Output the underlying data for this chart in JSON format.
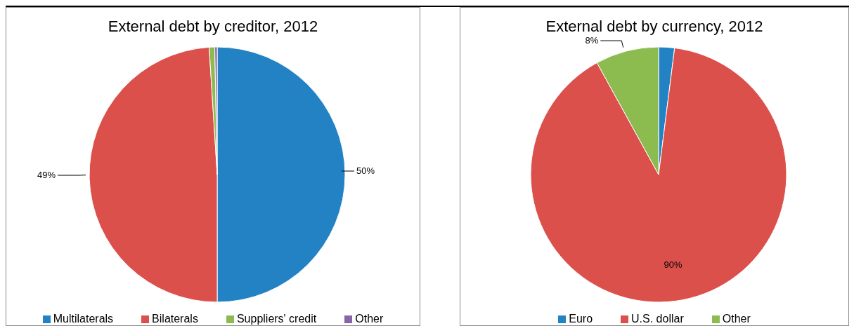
{
  "chart_data": [
    {
      "type": "pie",
      "title": "External debt by creditor, 2012",
      "categories": [
        "Multilaterals",
        "Bilaterals",
        "Suppliers' credit",
        "Other"
      ],
      "values": [
        50,
        49,
        0.7,
        0.3
      ],
      "colors": [
        "#2382c3",
        "#dc504c",
        "#8cbb50",
        "#8a64a8"
      ],
      "value_labels": [
        "50%",
        "49%",
        null,
        null
      ],
      "legend": "bottom"
    },
    {
      "type": "pie",
      "title": "External debt by currency, 2012",
      "categories": [
        "Euro",
        "U.S. dollar",
        "Other"
      ],
      "values": [
        2,
        90,
        8
      ],
      "colors": [
        "#2382c3",
        "#dc504c",
        "#8cbb50"
      ],
      "value_labels": [
        null,
        "90%",
        "8%"
      ],
      "legend": "bottom"
    }
  ]
}
